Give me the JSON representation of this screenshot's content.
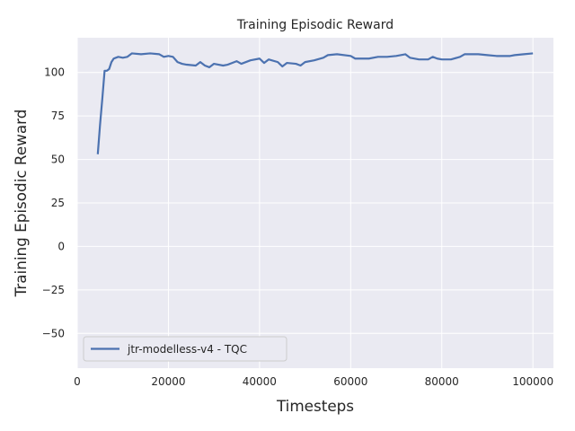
{
  "chart_data": {
    "type": "line",
    "title": "Training Episodic Reward",
    "xlabel": "Timesteps",
    "ylabel": "Training Episodic Reward",
    "xlim": [
      0,
      104500
    ],
    "ylim": [
      -70,
      120
    ],
    "xticks": [
      0,
      20000,
      40000,
      60000,
      80000,
      100000
    ],
    "xtick_labels": [
      "0",
      "20000",
      "40000",
      "60000",
      "80000",
      "100000"
    ],
    "yticks": [
      -50,
      -25,
      0,
      25,
      50,
      75,
      100
    ],
    "ytick_labels": [
      "−50",
      "−25",
      "0",
      "25",
      "50",
      "75",
      "100"
    ],
    "grid": true,
    "legend_position": "lower-left",
    "background_color": "#eaeaf2",
    "grid_color": "#ffffff",
    "series": [
      {
        "name": "jtr-modelless-v4 - TQC",
        "color": "#4c72b0",
        "x": [
          4500,
          5000,
          5500,
          6000,
          6500,
          7000,
          7500,
          8000,
          9000,
          10000,
          11000,
          12000,
          14000,
          16000,
          18000,
          19000,
          20000,
          21000,
          22000,
          23000,
          24000,
          26000,
          27000,
          28000,
          29000,
          30000,
          32000,
          33000,
          35000,
          36000,
          38000,
          40000,
          41000,
          42000,
          44000,
          45000,
          46000,
          48000,
          49000,
          50000,
          52000,
          54000,
          55000,
          57000,
          60000,
          61000,
          64000,
          66000,
          68000,
          70000,
          72000,
          73000,
          75000,
          77000,
          78000,
          79000,
          80000,
          82000,
          84000,
          85000,
          88000,
          90000,
          92000,
          95000,
          96000,
          98000,
          100000
        ],
        "y": [
          53,
          70,
          85,
          101,
          101,
          102,
          106,
          108,
          109,
          108.5,
          109,
          111,
          110.5,
          111,
          110.5,
          109,
          109.5,
          109,
          106,
          105,
          104.5,
          104,
          106,
          104,
          103,
          105,
          104,
          104.5,
          106.5,
          105,
          107,
          108,
          105.5,
          107.5,
          106,
          103.5,
          105.5,
          105,
          104,
          106,
          107,
          108.5,
          110,
          110.5,
          109.5,
          108,
          108,
          109,
          109,
          109.5,
          110.5,
          108.5,
          107.5,
          107.5,
          109,
          108,
          107.5,
          107.5,
          109,
          110.5,
          110.5,
          110,
          109.5,
          109.5,
          110,
          110.5,
          111
        ]
      }
    ]
  }
}
